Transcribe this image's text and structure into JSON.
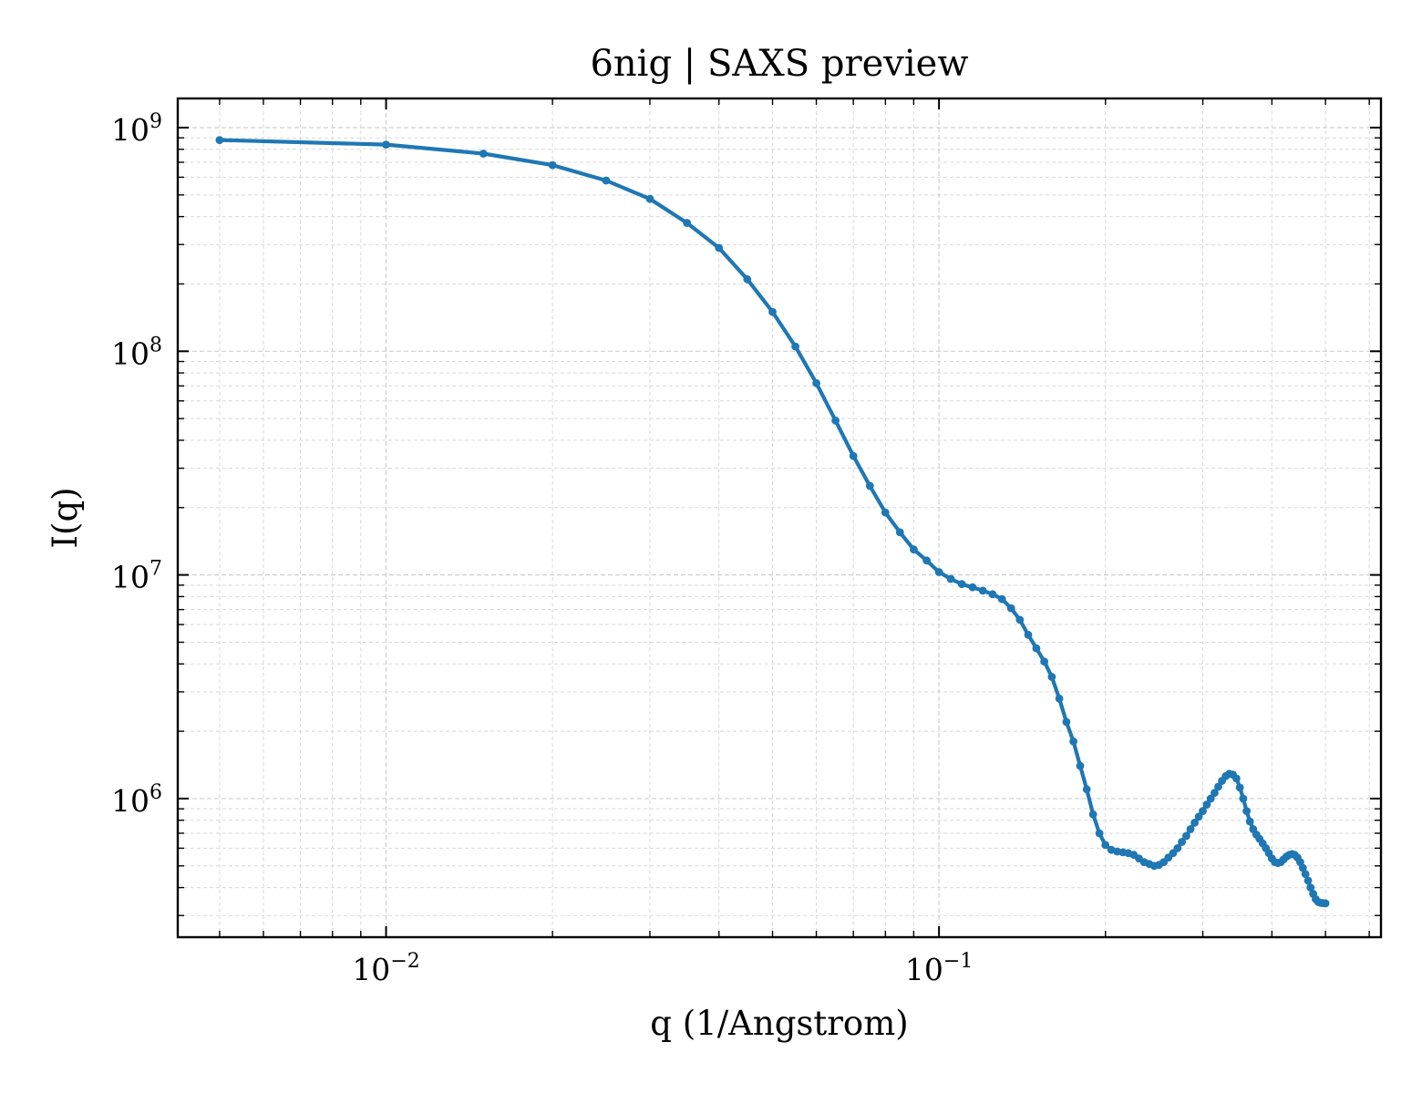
{
  "chart_data": {
    "type": "line",
    "title": "6nig | SAXS preview",
    "xlabel": "q (1/Angstrom)",
    "ylabel": "I(q)",
    "xscale": "log",
    "yscale": "log",
    "xlim": [
      0.0042,
      0.63
    ],
    "ylim": [
      240000,
      1350000000
    ],
    "grid": true,
    "x_major_ticks": [
      {
        "value": 0.01,
        "base": "10",
        "exp": "−2"
      },
      {
        "value": 0.1,
        "base": "10",
        "exp": "−1"
      }
    ],
    "y_major_ticks": [
      {
        "value": 1000000,
        "base": "10",
        "exp": "6"
      },
      {
        "value": 10000000,
        "base": "10",
        "exp": "7"
      },
      {
        "value": 100000000,
        "base": "10",
        "exp": "8"
      },
      {
        "value": 1000000000,
        "base": "10",
        "exp": "9"
      }
    ],
    "series": [
      {
        "color": "#1f77b4",
        "marker": "circle",
        "x": [
          0.005,
          0.01,
          0.015,
          0.02,
          0.025,
          0.03,
          0.035,
          0.04,
          0.045,
          0.05,
          0.055,
          0.06,
          0.065,
          0.07,
          0.075,
          0.08,
          0.085,
          0.09,
          0.095,
          0.1,
          0.105,
          0.11,
          0.115,
          0.12,
          0.125,
          0.13,
          0.135,
          0.14,
          0.145,
          0.15,
          0.155,
          0.16,
          0.165,
          0.17,
          0.175,
          0.18,
          0.185,
          0.19,
          0.195,
          0.2,
          0.205,
          0.21,
          0.215,
          0.22,
          0.225,
          0.23,
          0.235,
          0.24,
          0.245,
          0.25,
          0.255,
          0.26,
          0.265,
          0.27,
          0.275,
          0.28,
          0.285,
          0.29,
          0.295,
          0.3,
          0.305,
          0.31,
          0.315,
          0.32,
          0.325,
          0.33,
          0.335,
          0.34,
          0.345,
          0.35,
          0.355,
          0.36,
          0.365,
          0.37,
          0.375,
          0.38,
          0.385,
          0.39,
          0.395,
          0.4,
          0.405,
          0.41,
          0.415,
          0.42,
          0.425,
          0.43,
          0.435,
          0.44,
          0.445,
          0.45,
          0.455,
          0.46,
          0.465,
          0.47,
          0.475,
          0.48,
          0.485,
          0.49,
          0.495,
          0.5
        ],
        "y": [
          880000000,
          840000000,
          765000000,
          680000000,
          580000000,
          480000000,
          375000000,
          290000000,
          210000000,
          150000000,
          105000000,
          72000000,
          49000000,
          34000000,
          25000000,
          19000000,
          15500000,
          13000000,
          11600000,
          10300000,
          9600000,
          9100000,
          8800000,
          8500000,
          8200000,
          7800000,
          7100000,
          6300000,
          5400000,
          4700000,
          4100000,
          3500000,
          2800000,
          2200000,
          1800000,
          1400000,
          1100000,
          850000,
          700000,
          620000,
          590000,
          580000,
          575000,
          570000,
          560000,
          540000,
          520000,
          510000,
          500000,
          505000,
          520000,
          545000,
          570000,
          600000,
          640000,
          680000,
          730000,
          780000,
          830000,
          880000,
          940000,
          1000000,
          1060000,
          1130000,
          1200000,
          1260000,
          1290000,
          1280000,
          1230000,
          1120000,
          1000000,
          880000,
          790000,
          730000,
          690000,
          660000,
          630000,
          600000,
          570000,
          540000,
          520000,
          515000,
          520000,
          535000,
          550000,
          560000,
          565000,
          560000,
          545000,
          520000,
          490000,
          460000,
          430000,
          400000,
          375000,
          355000,
          345000,
          342000,
          341000,
          340000
        ]
      }
    ]
  }
}
